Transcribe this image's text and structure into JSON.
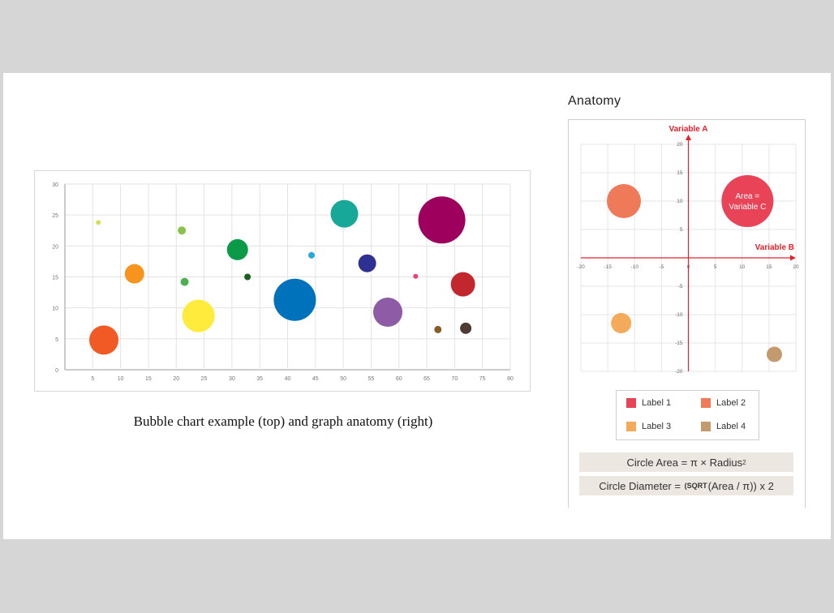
{
  "caption": "Bubble chart example (top) and graph anatomy (right)",
  "anatomy": {
    "title": "Anatomy",
    "axis_a_label": "Variable A",
    "axis_b_label": "Variable B",
    "annotation_line1": "Area =",
    "annotation_line2": "Variable C",
    "legend": [
      {
        "label": "Label 1",
        "color": "#e84357"
      },
      {
        "label": "Label 2",
        "color": "#ef7a5a"
      },
      {
        "label": "Label 3",
        "color": "#f3aa5a"
      },
      {
        "label": "Label 4",
        "color": "#c29a6e"
      }
    ],
    "formula_area_prefix": "Circle Area = π × Radius",
    "formula_area_sup": "2",
    "formula_diam_prefix": "Circle Diameter = ",
    "formula_diam_sqrt": "(SQRT",
    "formula_diam_rest": "(Area / π)) x 2"
  },
  "chart_data": [
    {
      "type": "scatter",
      "title": "",
      "xlabel": "",
      "ylabel": "",
      "xlim": [
        0,
        80
      ],
      "ylim": [
        0,
        30
      ],
      "xticks": [
        5,
        10,
        15,
        20,
        25,
        30,
        35,
        40,
        45,
        50,
        55,
        60,
        65,
        70,
        75,
        80
      ],
      "yticks": [
        0,
        5,
        10,
        15,
        20,
        25,
        30
      ],
      "grid": true,
      "points": [
        {
          "x": 7,
          "y": 4.8,
          "size": 18,
          "color": "#f15a24"
        },
        {
          "x": 6,
          "y": 23.8,
          "size": 3,
          "color": "#d4e157"
        },
        {
          "x": 12.5,
          "y": 15.5,
          "size": 12,
          "color": "#f7941d"
        },
        {
          "x": 21,
          "y": 22.5,
          "size": 5,
          "color": "#8bc34a"
        },
        {
          "x": 21.5,
          "y": 14.2,
          "size": 5,
          "color": "#4caf50"
        },
        {
          "x": 24,
          "y": 8.7,
          "size": 20,
          "color": "#ffeb3b"
        },
        {
          "x": 31,
          "y": 19.4,
          "size": 13,
          "color": "#0a9a48"
        },
        {
          "x": 32.8,
          "y": 15,
          "size": 4,
          "color": "#1b5e20"
        },
        {
          "x": 41.3,
          "y": 11.3,
          "size": 26,
          "color": "#0072bc"
        },
        {
          "x": 44.3,
          "y": 18.5,
          "size": 4,
          "color": "#29a8e0"
        },
        {
          "x": 50.2,
          "y": 25.2,
          "size": 17,
          "color": "#17a89a"
        },
        {
          "x": 54.3,
          "y": 17.2,
          "size": 11,
          "color": "#2e3192"
        },
        {
          "x": 58,
          "y": 9.3,
          "size": 18,
          "color": "#8e5ba6"
        },
        {
          "x": 63,
          "y": 15.1,
          "size": 3,
          "color": "#ec407a"
        },
        {
          "x": 67.7,
          "y": 24.2,
          "size": 29,
          "color": "#9e005d"
        },
        {
          "x": 71.5,
          "y": 13.8,
          "size": 15,
          "color": "#c1272d"
        },
        {
          "x": 67,
          "y": 6.5,
          "size": 4.5,
          "color": "#8b5a2b"
        },
        {
          "x": 72,
          "y": 6.7,
          "size": 7,
          "color": "#4e3b31"
        }
      ]
    },
    {
      "type": "scatter",
      "title": "",
      "xlabel": "Variable B",
      "ylabel": "Variable A",
      "xlim": [
        -20,
        20
      ],
      "ylim": [
        -20,
        20
      ],
      "xticks": [
        -20,
        -15,
        -10,
        -5,
        0,
        5,
        10,
        15,
        20
      ],
      "yticks": [
        -20,
        -15,
        -10,
        -5,
        5,
        10,
        15,
        20
      ],
      "grid": true,
      "points": [
        {
          "x": -12,
          "y": 10,
          "size": 21,
          "color": "#ef7a5a",
          "series": "Label 2"
        },
        {
          "x": 11,
          "y": 10,
          "size": 32,
          "color": "#e84357",
          "series": "Label 1"
        },
        {
          "x": -12.5,
          "y": -11.5,
          "size": 12.5,
          "color": "#f3aa5a",
          "series": "Label 3"
        },
        {
          "x": 16,
          "y": -17,
          "size": 9.5,
          "color": "#c29a6e",
          "series": "Label 4"
        }
      ]
    }
  ]
}
